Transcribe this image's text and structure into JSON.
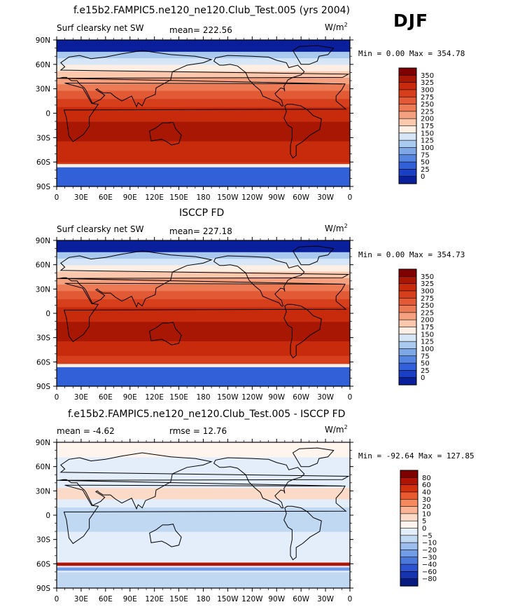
{
  "season": "DJF",
  "unit_prefix": "W/m",
  "unit_sup": "2",
  "lat_labels": [
    "90N",
    "60N",
    "30N",
    "0",
    "30S",
    "60S",
    "90S"
  ],
  "lon_labels": [
    "0",
    "30E",
    "60E",
    "90E",
    "120E",
    "150E",
    "180",
    "150W",
    "120W",
    "90W",
    "60W",
    "30W",
    "0"
  ],
  "panels": [
    {
      "title": "f.e15b2.FAMPIC5.ne120_ne120.Club_Test.005 (yrs 2004)",
      "left_label": "Surf clearsky net SW",
      "stat_text": "mean= 222.56",
      "minmax": "Min =    0.00 Max = 354.78",
      "scale": "abs",
      "colorbar_labels": [
        "350",
        "325",
        "300",
        "275",
        "250",
        "225",
        "200",
        "175",
        "150",
        "125",
        "100",
        "75",
        "50",
        "25",
        "0"
      ]
    },
    {
      "title": "ISCCP FD",
      "left_label": "Surf clearsky net SW",
      "stat_text": "mean= 227.18",
      "minmax": "Min =    0.00 Max = 354.73",
      "scale": "abs",
      "colorbar_labels": [
        "350",
        "325",
        "300",
        "275",
        "250",
        "225",
        "200",
        "175",
        "150",
        "125",
        "100",
        "75",
        "50",
        "25",
        "0"
      ]
    },
    {
      "title": "f.e15b2.FAMPIC5.ne120_ne120.Club_Test.005 - ISCCP FD",
      "left_label": "mean =  -4.62",
      "stat_text": "rmse =  12.76",
      "minmax": "Min = -92.64 Max = 127.85",
      "scale": "diff",
      "colorbar_labels": [
        "80",
        "60",
        "40",
        "30",
        "20",
        "10",
        "5",
        "0",
        "−5",
        "−10",
        "−20",
        "−30",
        "−40",
        "−60",
        "−80"
      ]
    }
  ],
  "colors": {
    "abs": [
      "#7f0000",
      "#a81604",
      "#c72b0c",
      "#d73e1c",
      "#e25a35",
      "#ec7b55",
      "#f5a07f",
      "#fbc8ae",
      "#fdeee4",
      "#d6e6f7",
      "#aac9ef",
      "#7ea7e6",
      "#5585e0",
      "#3160d8",
      "#1a3fc5",
      "#0a1f9c"
    ],
    "diff": [
      "#7f0000",
      "#b01405",
      "#d3300f",
      "#ea5a30",
      "#f7895f",
      "#fbb495",
      "#fcdac8",
      "#fff5ee",
      "#e4eefa",
      "#c1d8f3",
      "#9cbdee",
      "#739ce6",
      "#4c78dc",
      "#2d53cf",
      "#1633b0",
      "#061a80"
    ]
  }
}
